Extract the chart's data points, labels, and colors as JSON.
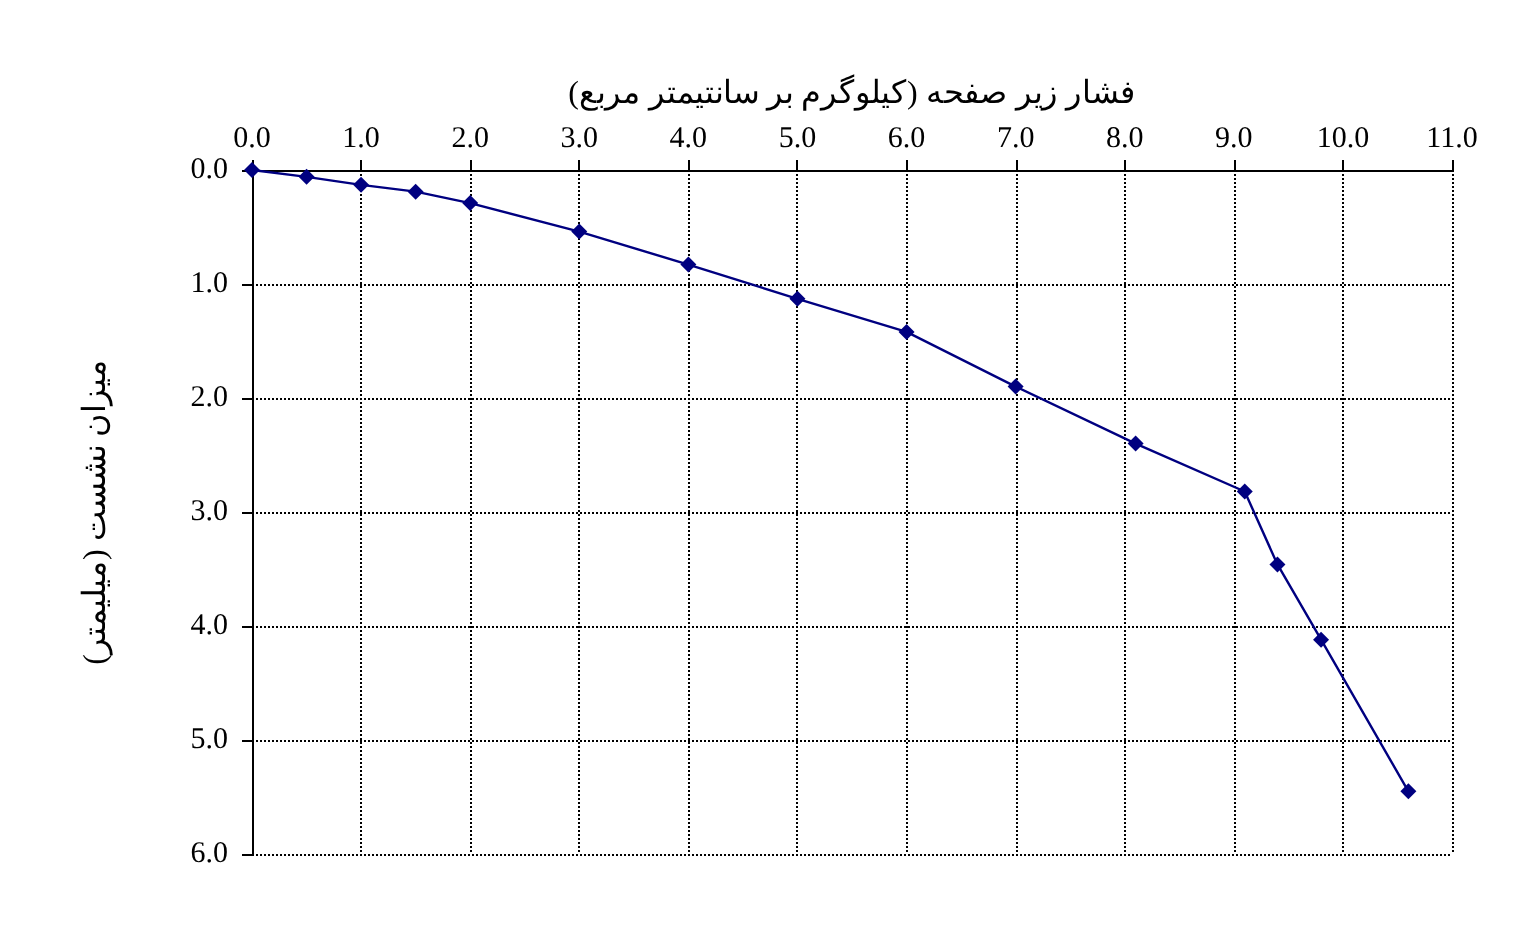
{
  "chart_data": {
    "type": "line",
    "xlabel": "فشار زیر صفحه (کیلوگرم بر سانتیمتر مربع)",
    "ylabel": "میزان نشست (میلیمتر)",
    "x": [
      0,
      0.5,
      1.0,
      1.5,
      2.0,
      3.0,
      4.0,
      5.0,
      6.0,
      7.0,
      8.1,
      9.1,
      9.4,
      9.8,
      10.6
    ],
    "series": [
      {
        "color": "#000080",
        "values": [
          0,
          0.06,
          0.13,
          0.19,
          0.29,
          0.54,
          0.83,
          1.13,
          1.42,
          1.9,
          2.4,
          2.82,
          3.46,
          4.12,
          5.45
        ]
      }
    ],
    "xlim": [
      0,
      11
    ],
    "xticks": [
      {
        "value": 0,
        "label": "0.0"
      },
      {
        "value": 1,
        "label": "1.0"
      },
      {
        "value": 2,
        "label": "2.0"
      },
      {
        "value": 3,
        "label": "3.0"
      },
      {
        "value": 4,
        "label": "4.0"
      },
      {
        "value": 5,
        "label": "5.0"
      },
      {
        "value": 6,
        "label": "6.0"
      },
      {
        "value": 7,
        "label": "7.0"
      },
      {
        "value": 8,
        "label": "8.0"
      },
      {
        "value": 9,
        "label": "9.0"
      },
      {
        "value": 10,
        "label": "10.0"
      },
      {
        "value": 11,
        "label": "11.0"
      }
    ],
    "ylim": [
      6,
      0
    ],
    "yticks": [
      {
        "value": 0,
        "label": "0.0"
      },
      {
        "value": 1,
        "label": "1.0"
      },
      {
        "value": 2,
        "label": "2.0"
      },
      {
        "value": 3,
        "label": "3.0"
      },
      {
        "value": 4,
        "label": "4.0"
      },
      {
        "value": 5,
        "label": "5.0"
      },
      {
        "value": 6,
        "label": "6.0"
      }
    ],
    "grid": true,
    "marker": "diamond",
    "line_style": "solid"
  }
}
